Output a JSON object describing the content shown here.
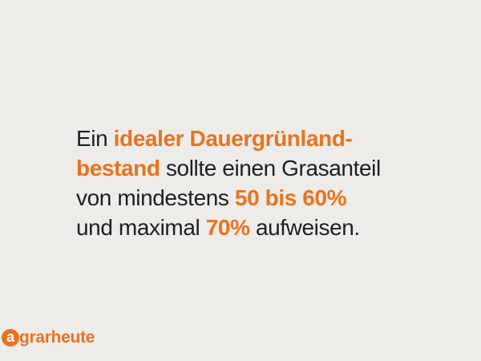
{
  "statement": {
    "lines": [
      [
        {
          "text": "Ein ",
          "emphasis": false
        },
        {
          "text": "idealer Dauergrünland-",
          "emphasis": true
        }
      ],
      [
        {
          "text": "bestand",
          "emphasis": true
        },
        {
          "text": " sollte einen Grasanteil",
          "emphasis": false
        }
      ],
      [
        {
          "text": "von mindestens ",
          "emphasis": false
        },
        {
          "text": "50 bis 60%",
          "emphasis": true
        }
      ],
      [
        {
          "text": "und maximal ",
          "emphasis": false
        },
        {
          "text": "70%",
          "emphasis": true
        },
        {
          "text": " aufweisen.",
          "emphasis": false
        }
      ]
    ]
  },
  "logo": {
    "mark": "a",
    "text": "grarheute"
  }
}
